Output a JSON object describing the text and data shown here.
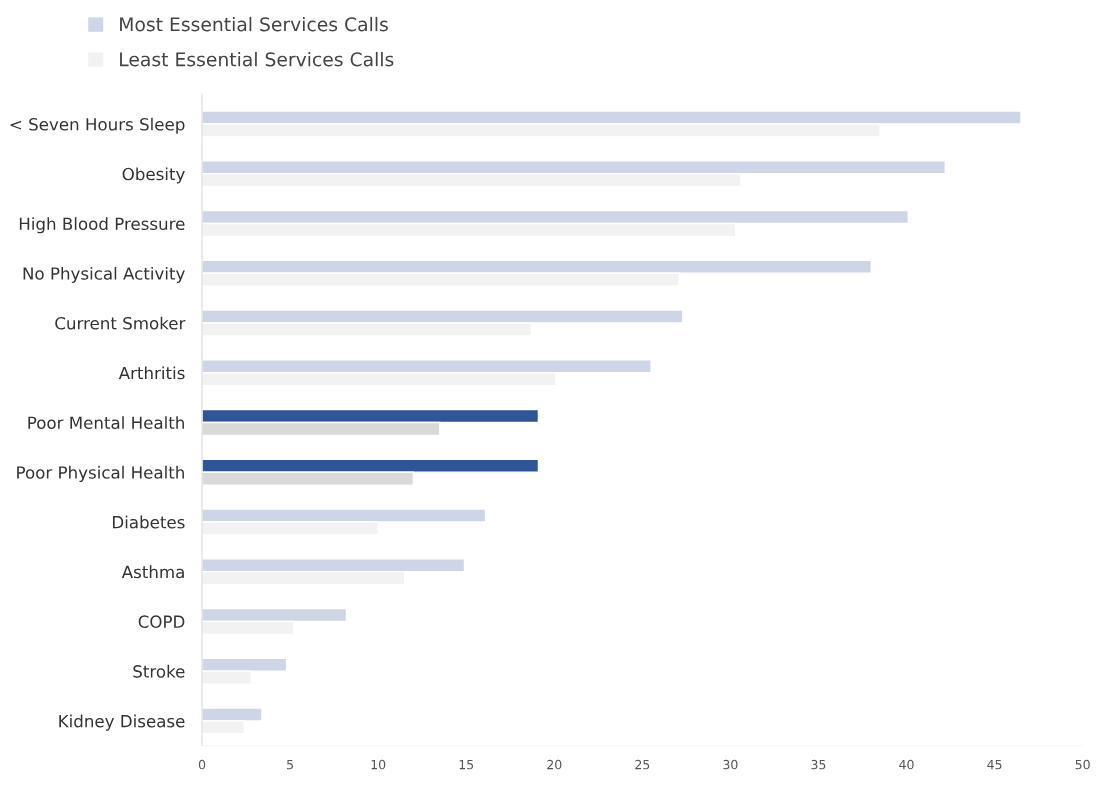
{
  "chart_data": {
    "type": "bar",
    "orientation": "horizontal",
    "categories": [
      "< Seven Hours Sleep",
      "Obesity",
      "High Blood Pressure",
      "No Physical Activity",
      "Current Smoker",
      "Arthritis",
      "Poor Mental Health",
      "Poor Physical Health",
      "Diabetes",
      "Asthma",
      "COPD",
      "Stroke",
      "Kidney Disease"
    ],
    "series": [
      {
        "name": "Most Essential Services Calls",
        "color": "#cdd5e6",
        "colors": [
          "#cdd5e6",
          "#cdd5e6",
          "#cdd5e6",
          "#cdd5e6",
          "#cdd5e6",
          "#cdd5e6",
          "#2f5597",
          "#2f5597",
          "#cdd5e6",
          "#cdd5e6",
          "#cdd5e6",
          "#cdd5e6",
          "#cdd5e6"
        ],
        "values": [
          46.5,
          42.2,
          40.1,
          38.0,
          27.3,
          25.5,
          19.1,
          19.1,
          16.1,
          14.9,
          8.2,
          4.8,
          3.4
        ]
      },
      {
        "name": "Least Essential Services Calls",
        "color": "#f2f2f2",
        "colors": [
          "#f2f2f2",
          "#f2f2f2",
          "#f2f2f2",
          "#f2f2f2",
          "#f2f2f2",
          "#f2f2f2",
          "#d9d9d9",
          "#d9d9d9",
          "#f2f2f2",
          "#f2f2f2",
          "#f2f2f2",
          "#f2f2f2",
          "#f2f2f2"
        ],
        "values": [
          38.5,
          30.6,
          30.3,
          27.1,
          18.7,
          20.1,
          13.5,
          12.0,
          10.0,
          11.5,
          5.2,
          2.8,
          2.4
        ]
      }
    ],
    "xlim": [
      0,
      50
    ],
    "xticks": [
      0,
      5,
      10,
      15,
      20,
      25,
      30,
      35,
      40,
      45,
      50
    ],
    "grid": false,
    "legend": "top left"
  }
}
